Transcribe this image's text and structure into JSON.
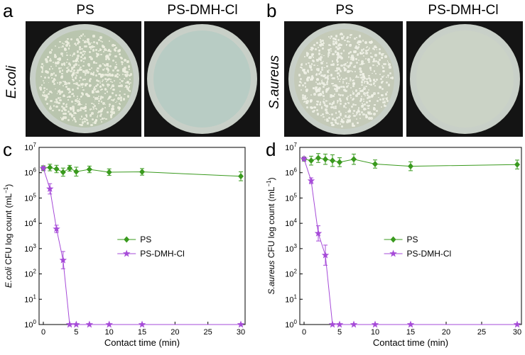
{
  "panels": {
    "a": {
      "letter": "a",
      "left_title": "PS",
      "right_title": "PS-DMH-Cl",
      "side_label": "E.coli"
    },
    "b": {
      "letter": "b",
      "left_title": "PS",
      "right_title": "PS-DMH-Cl",
      "side_label": "S.aureus"
    },
    "c": {
      "letter": "c"
    },
    "d": {
      "letter": "d"
    }
  },
  "colors": {
    "ps": "#3a9a1e",
    "dmh": "#a64bd8"
  },
  "chart_data": [
    {
      "type": "line",
      "panel": "c",
      "xlabel": "Contact time (min)",
      "ylabel_species": "E.coli",
      "ylabel_rest": " CFU log count (mL",
      "ylabel_sup": "−1",
      "ylabel_close": ")",
      "xlim": [
        0,
        30
      ],
      "ylim": [
        1,
        10000000
      ],
      "y_scale": "log",
      "x_ticks": [
        0,
        5,
        10,
        15,
        20,
        25,
        30
      ],
      "y_tick_exponents": [
        0,
        1,
        2,
        3,
        4,
        5,
        6,
        7
      ],
      "legend_position": "center",
      "series": [
        {
          "name": "PS",
          "marker": "diamond",
          "color": "#3a9a1e",
          "x": [
            0,
            1,
            2,
            3,
            4,
            5,
            7,
            10,
            15,
            30
          ],
          "y": [
            1500000,
            1600000,
            1400000,
            1050000,
            1500000,
            1100000,
            1350000,
            1050000,
            1080000,
            720000
          ],
          "err_factor": [
            1.25,
            1.35,
            1.4,
            1.45,
            1.3,
            1.5,
            1.35,
            1.35,
            1.35,
            1.5
          ]
        },
        {
          "name": "PS-DMH-Cl",
          "marker": "star",
          "color": "#a64bd8",
          "x": [
            0,
            1,
            2,
            3,
            4,
            5,
            7,
            10,
            15,
            30
          ],
          "y": [
            1500000,
            230000,
            6000,
            350,
            1,
            1,
            1,
            1,
            1,
            1
          ],
          "err_factor": [
            1.15,
            1.6,
            1.4,
            2.2,
            1,
            1,
            1,
            1,
            1,
            1
          ]
        }
      ]
    },
    {
      "type": "line",
      "panel": "d",
      "xlabel": "Contact time (min)",
      "ylabel_species": "S.aureus",
      "ylabel_rest": " CFU log count (mL",
      "ylabel_sup": "−1",
      "ylabel_close": ")",
      "xlim": [
        0,
        30
      ],
      "ylim": [
        1,
        10000000
      ],
      "y_scale": "log",
      "x_ticks": [
        0,
        5,
        10,
        15,
        20,
        25,
        30
      ],
      "y_tick_exponents": [
        0,
        1,
        2,
        3,
        4,
        5,
        6,
        7
      ],
      "legend_position": "center",
      "series": [
        {
          "name": "PS",
          "marker": "diamond",
          "color": "#3a9a1e",
          "x": [
            0,
            1,
            2,
            3,
            4,
            5,
            7,
            10,
            15,
            30
          ],
          "y": [
            3500000,
            3000000,
            3800000,
            3400000,
            3000000,
            2600000,
            3400000,
            2200000,
            1800000,
            2100000
          ],
          "err_factor": [
            1.2,
            1.5,
            1.5,
            1.6,
            1.7,
            1.5,
            1.6,
            1.45,
            1.5,
            1.5
          ]
        },
        {
          "name": "PS-DMH-Cl",
          "marker": "star",
          "color": "#a64bd8",
          "x": [
            0,
            1,
            2,
            3,
            4,
            5,
            7,
            10,
            15,
            30
          ],
          "y": [
            3500000,
            480000,
            4000,
            550,
            1,
            1,
            1,
            1,
            1,
            1
          ],
          "err_factor": [
            1.15,
            1.3,
            2.0,
            2.5,
            1,
            1,
            1,
            1,
            1,
            1
          ]
        }
      ]
    }
  ]
}
